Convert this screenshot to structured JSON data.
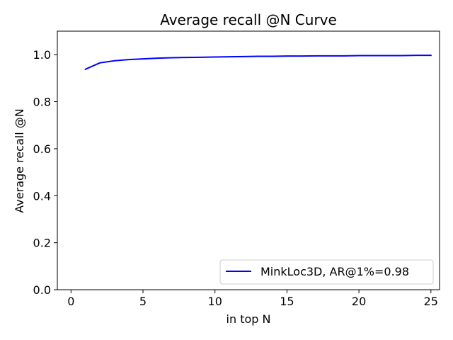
{
  "chart_data": {
    "type": "line",
    "title": "Average recall @N Curve",
    "xlabel": "in top N",
    "ylabel": "Average recall @N",
    "xlim": [
      -0.95,
      25.6
    ],
    "ylim": [
      0.0,
      1.1
    ],
    "xticks": [
      0,
      5,
      10,
      15,
      20,
      25
    ],
    "yticks": [
      0.0,
      0.2,
      0.4,
      0.6,
      0.8,
      1.0
    ],
    "xtick_labels": [
      "0",
      "5",
      "10",
      "15",
      "20",
      "25"
    ],
    "ytick_labels": [
      "0.0",
      "0.2",
      "0.4",
      "0.6",
      "0.8",
      "1.0"
    ],
    "grid": false,
    "legend_position": "lower-right",
    "series": [
      {
        "name": "MinkLoc3D, AR@1%=0.98",
        "color": "#0000ff",
        "x": [
          1,
          2,
          3,
          4,
          5,
          6,
          7,
          8,
          9,
          10,
          11,
          12,
          13,
          14,
          15,
          16,
          17,
          18,
          19,
          20,
          21,
          22,
          23,
          24,
          25
        ],
        "values": [
          0.938,
          0.965,
          0.974,
          0.979,
          0.982,
          0.985,
          0.987,
          0.988,
          0.989,
          0.99,
          0.991,
          0.992,
          0.993,
          0.993,
          0.994,
          0.994,
          0.995,
          0.995,
          0.995,
          0.996,
          0.996,
          0.996,
          0.996,
          0.997,
          0.997
        ]
      }
    ]
  }
}
